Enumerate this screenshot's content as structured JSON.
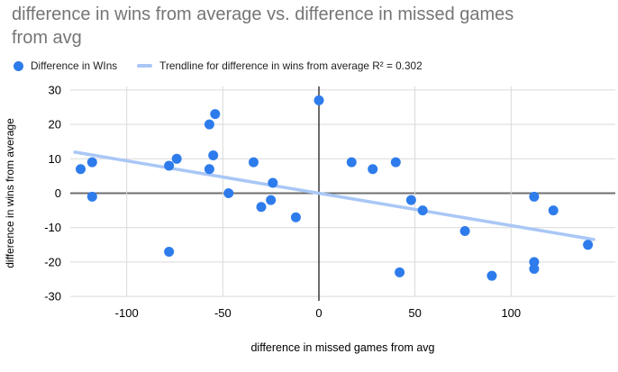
{
  "chart": {
    "title": "difference in wins from average vs. difference in missed games from avg",
    "title_lines": [
      "difference in wins from average vs. difference in missed games",
      "from avg"
    ],
    "legend": [
      {
        "label": "Difference in WIns",
        "swatch": "dot"
      },
      {
        "label": "Trendline for difference in wins from average R² = 0.302",
        "swatch": "line"
      }
    ]
  },
  "chart_data": {
    "type": "scatter",
    "title": "difference in wins from average vs. difference in missed games from avg",
    "xlabel": "difference in missed games from avg",
    "ylabel": "difference in wins from average",
    "x_ticks": [
      -100,
      -50,
      0,
      50,
      100
    ],
    "y_ticks": [
      30,
      20,
      10,
      0,
      -10,
      -20,
      -30
    ],
    "xlim": [
      -129,
      154
    ],
    "ylim": [
      -30,
      30
    ],
    "grid": true,
    "legend_position": "top-left",
    "series": [
      {
        "name": "Difference in WIns",
        "points": [
          [
            -124,
            7
          ],
          [
            -118,
            9
          ],
          [
            -118,
            -1
          ],
          [
            -78,
            8
          ],
          [
            -74,
            10
          ],
          [
            -78,
            -17
          ],
          [
            -57,
            20
          ],
          [
            -54,
            23
          ],
          [
            -55,
            11
          ],
          [
            -57,
            7
          ],
          [
            -47,
            0
          ],
          [
            -34,
            9
          ],
          [
            -30,
            -4
          ],
          [
            -25,
            -2
          ],
          [
            -24,
            3
          ],
          [
            -12,
            -7
          ],
          [
            0,
            27
          ],
          [
            17,
            9
          ],
          [
            28,
            7
          ],
          [
            40,
            9
          ],
          [
            48,
            -2
          ],
          [
            42,
            -23
          ],
          [
            54,
            -5
          ],
          [
            76,
            -11
          ],
          [
            90,
            -24
          ],
          [
            112,
            -1
          ],
          [
            112,
            -20
          ],
          [
            112,
            -22
          ],
          [
            122,
            -5
          ],
          [
            140,
            -15
          ]
        ]
      }
    ],
    "trendline": {
      "label": "Trendline for difference in wins from average",
      "r2": 0.302,
      "slope": -0.094,
      "intercept": 0,
      "x_start": -127,
      "x_end": 143
    },
    "colors": {
      "point": "#2e7cec",
      "trendline": "#a9c7f6",
      "gridline": "#d9d9d9",
      "zero_line_h": "#6f6f6f",
      "zero_line_v": "#3a3a3a",
      "title": "#757575",
      "text": "#000000"
    }
  }
}
